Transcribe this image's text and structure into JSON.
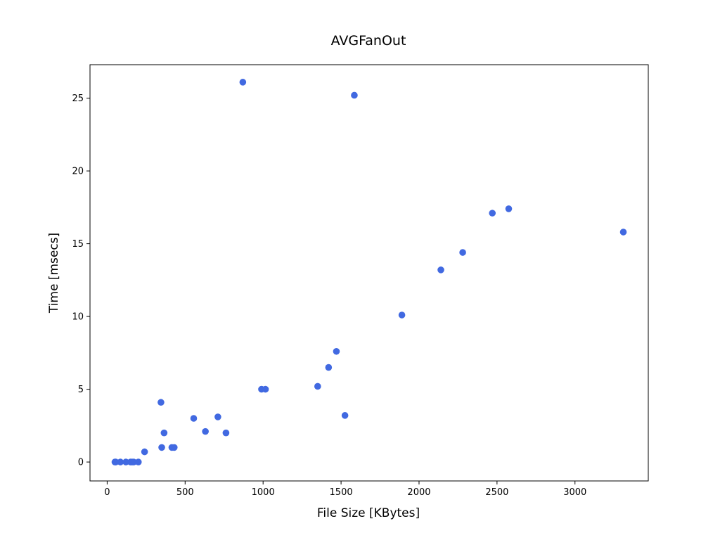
{
  "chart_data": {
    "type": "scatter",
    "title": "AVGFanOut",
    "xlabel": "File Size [KBytes]",
    "ylabel": "Time [msecs]",
    "xlim": [
      -110,
      3470
    ],
    "ylim": [
      -1.3,
      27.3
    ],
    "xticks": [
      0,
      500,
      1000,
      1500,
      2000,
      2500,
      3000
    ],
    "yticks": [
      0,
      5,
      10,
      15,
      20,
      25
    ],
    "grid": false,
    "marker_color": "#4169e1",
    "points": [
      {
        "x": 50,
        "y": 0
      },
      {
        "x": 55,
        "y": 0
      },
      {
        "x": 85,
        "y": 0
      },
      {
        "x": 120,
        "y": 0
      },
      {
        "x": 150,
        "y": 0
      },
      {
        "x": 160,
        "y": 0
      },
      {
        "x": 170,
        "y": 0
      },
      {
        "x": 200,
        "y": 0
      },
      {
        "x": 240,
        "y": 0.7
      },
      {
        "x": 345,
        "y": 4.1
      },
      {
        "x": 350,
        "y": 1.0
      },
      {
        "x": 365,
        "y": 2.0
      },
      {
        "x": 415,
        "y": 1.0
      },
      {
        "x": 430,
        "y": 1.0
      },
      {
        "x": 555,
        "y": 3.0
      },
      {
        "x": 630,
        "y": 2.1
      },
      {
        "x": 710,
        "y": 3.1
      },
      {
        "x": 762,
        "y": 2.0
      },
      {
        "x": 870,
        "y": 26.1
      },
      {
        "x": 990,
        "y": 5.0
      },
      {
        "x": 1015,
        "y": 5.0
      },
      {
        "x": 1350,
        "y": 5.2
      },
      {
        "x": 1420,
        "y": 6.5
      },
      {
        "x": 1470,
        "y": 7.6
      },
      {
        "x": 1525,
        "y": 3.2
      },
      {
        "x": 1585,
        "y": 25.2
      },
      {
        "x": 1890,
        "y": 10.1
      },
      {
        "x": 2140,
        "y": 13.2
      },
      {
        "x": 2280,
        "y": 14.4
      },
      {
        "x": 2470,
        "y": 17.1
      },
      {
        "x": 2575,
        "y": 17.4
      },
      {
        "x": 3310,
        "y": 15.8
      }
    ]
  }
}
